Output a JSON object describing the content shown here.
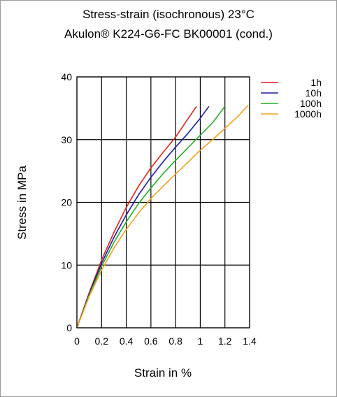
{
  "chart_data": {
    "type": "line",
    "title": "Stress-strain (isochronous) 23°C",
    "subtitle": "Akulon® K224-G6-FC BK00001 (cond.)",
    "xlabel": "Strain in %",
    "ylabel": "Stress in MPa",
    "xlim": [
      0,
      1.4
    ],
    "ylim": [
      0,
      40
    ],
    "xticks": [
      "0",
      "0.2",
      "0.4",
      "0.6",
      "0.8",
      "1",
      "1.2",
      "1.4"
    ],
    "yticks": [
      "0",
      "10",
      "20",
      "30",
      "40"
    ],
    "grid": true,
    "legend_position": "top-right",
    "series": [
      {
        "name": "1h",
        "color": "#e8201a",
        "points": [
          [
            0,
            0
          ],
          [
            0.1,
            5.6
          ],
          [
            0.2,
            10.8
          ],
          [
            0.3,
            15.2
          ],
          [
            0.4,
            19.2
          ],
          [
            0.5,
            22.6
          ],
          [
            0.6,
            25.5
          ],
          [
            0.7,
            28.0
          ],
          [
            0.8,
            30.4
          ],
          [
            0.9,
            33.3
          ],
          [
            0.97,
            35.3
          ]
        ]
      },
      {
        "name": "10h",
        "color": "#1a1aa8",
        "points": [
          [
            0,
            0
          ],
          [
            0.1,
            5.4
          ],
          [
            0.2,
            10.3
          ],
          [
            0.3,
            14.4
          ],
          [
            0.4,
            18.0
          ],
          [
            0.5,
            21.2
          ],
          [
            0.6,
            24.0
          ],
          [
            0.7,
            26.5
          ],
          [
            0.8,
            28.8
          ],
          [
            0.9,
            31.0
          ],
          [
            1.0,
            33.4
          ],
          [
            1.07,
            35.3
          ]
        ]
      },
      {
        "name": "100h",
        "color": "#22b022",
        "points": [
          [
            0,
            0
          ],
          [
            0.1,
            5.2
          ],
          [
            0.2,
            9.8
          ],
          [
            0.3,
            13.6
          ],
          [
            0.4,
            16.9
          ],
          [
            0.5,
            19.8
          ],
          [
            0.6,
            22.3
          ],
          [
            0.7,
            24.6
          ],
          [
            0.8,
            26.7
          ],
          [
            0.9,
            28.7
          ],
          [
            1.0,
            30.7
          ],
          [
            1.1,
            32.7
          ],
          [
            1.2,
            35.3
          ]
        ]
      },
      {
        "name": "1000h",
        "color": "#f5a01e",
        "points": [
          [
            0,
            0
          ],
          [
            0.1,
            5.0
          ],
          [
            0.2,
            9.2
          ],
          [
            0.3,
            12.7
          ],
          [
            0.4,
            15.7
          ],
          [
            0.5,
            18.3
          ],
          [
            0.6,
            20.6
          ],
          [
            0.7,
            22.6
          ],
          [
            0.8,
            24.5
          ],
          [
            0.9,
            26.4
          ],
          [
            1.0,
            28.3
          ],
          [
            1.1,
            30.0
          ],
          [
            1.2,
            31.8
          ],
          [
            1.3,
            33.6
          ],
          [
            1.39,
            35.5
          ]
        ]
      }
    ]
  }
}
